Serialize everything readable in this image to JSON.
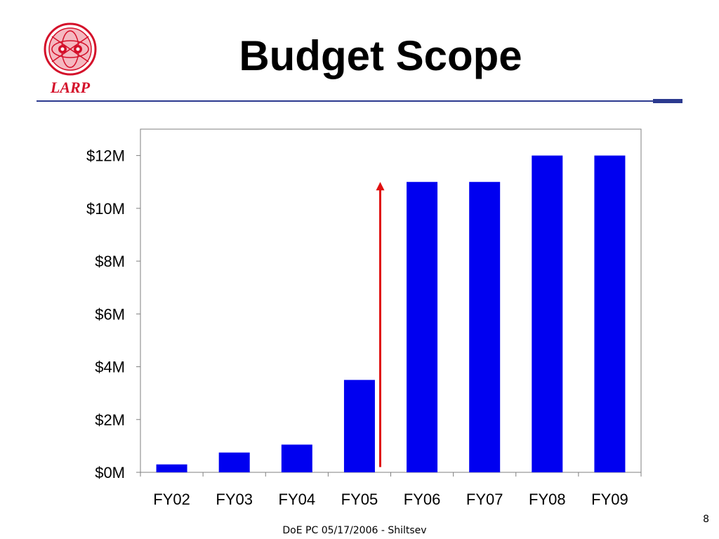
{
  "slide": {
    "title": "Budget Scope",
    "logo_text": "LARP",
    "footer": "DoE PC 05/17/2006 - Shiltsev",
    "page_number": "8"
  },
  "colors": {
    "bar": "#0000f0",
    "arrow": "#e01010",
    "rule": "#2b3a8f",
    "logo": "#d4102a"
  },
  "icons": {
    "logo": "larp-logo-icon",
    "arrow": "increase-arrow-icon"
  },
  "chart_data": {
    "type": "bar",
    "categories": [
      "FY02",
      "FY03",
      "FY04",
      "FY05",
      "FY06",
      "FY07",
      "FY08",
      "FY09"
    ],
    "values": [
      0.3,
      0.75,
      1.05,
      3.5,
      11,
      11,
      12,
      12
    ],
    "value_unit": "$M",
    "ylim": [
      0,
      13
    ],
    "yticks": [
      0,
      2,
      4,
      6,
      8,
      10,
      12
    ],
    "ytick_labels": [
      "$0M",
      "$2M",
      "$4M",
      "$6M",
      "$8M",
      "$10M",
      "$12M"
    ],
    "grid": false,
    "annotation": {
      "type": "arrow",
      "between": [
        "FY05",
        "FY06"
      ],
      "from_value": 0.2,
      "to_value": 11.0
    }
  }
}
